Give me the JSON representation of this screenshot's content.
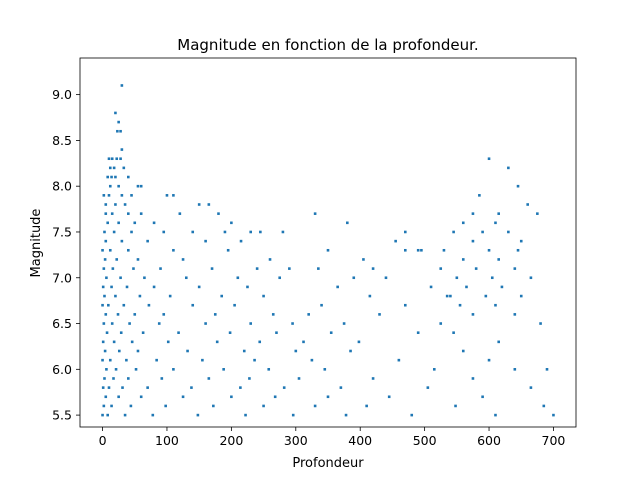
{
  "chart_data": {
    "type": "scatter",
    "title": "Magnitude en fonction de la profondeur.",
    "xlabel": "Profondeur",
    "ylabel": "Magnitude",
    "xlim": [
      -35,
      735
    ],
    "ylim": [
      5.37,
      9.4
    ],
    "xticks": [
      0,
      100,
      200,
      300,
      400,
      500,
      600,
      700
    ],
    "yticks": [
      5.5,
      6.0,
      6.5,
      7.0,
      7.5,
      8.0,
      8.5,
      9.0
    ],
    "ytick_labels": [
      "5.5",
      "6.0",
      "6.5",
      "7.0",
      "7.5",
      "8.0",
      "8.5",
      "9.0"
    ],
    "grid": false,
    "color": "#1f77b4",
    "points": [
      [
        30,
        9.1
      ],
      [
        20,
        8.8
      ],
      [
        25,
        8.7
      ],
      [
        23,
        8.6
      ],
      [
        28,
        8.6
      ],
      [
        30,
        8.4
      ],
      [
        10,
        8.3
      ],
      [
        15,
        8.3
      ],
      [
        22,
        8.3
      ],
      [
        28,
        8.3
      ],
      [
        12,
        8.2
      ],
      [
        18,
        8.2
      ],
      [
        33,
        8.2
      ],
      [
        8,
        8.1
      ],
      [
        14,
        8.1
      ],
      [
        20,
        8.1
      ],
      [
        40,
        8.1
      ],
      [
        12,
        8.0
      ],
      [
        25,
        8.0
      ],
      [
        55,
        8.0
      ],
      [
        60,
        8.0
      ],
      [
        2,
        7.9
      ],
      [
        10,
        7.9
      ],
      [
        30,
        7.9
      ],
      [
        45,
        7.9
      ],
      [
        100,
        7.9
      ],
      [
        110,
        7.9
      ],
      [
        5,
        7.8
      ],
      [
        20,
        7.8
      ],
      [
        35,
        7.8
      ],
      [
        150,
        7.8
      ],
      [
        165,
        7.8
      ],
      [
        5,
        7.7
      ],
      [
        15,
        7.7
      ],
      [
        40,
        7.7
      ],
      [
        60,
        7.7
      ],
      [
        120,
        7.7
      ],
      [
        180,
        7.7
      ],
      [
        330,
        7.7
      ],
      [
        8,
        7.6
      ],
      [
        25,
        7.6
      ],
      [
        50,
        7.6
      ],
      [
        80,
        7.6
      ],
      [
        200,
        7.6
      ],
      [
        380,
        7.6
      ],
      [
        3,
        7.5
      ],
      [
        18,
        7.5
      ],
      [
        45,
        7.5
      ],
      [
        95,
        7.5
      ],
      [
        140,
        7.5
      ],
      [
        190,
        7.5
      ],
      [
        230,
        7.5
      ],
      [
        245,
        7.5
      ],
      [
        280,
        7.5
      ],
      [
        5,
        7.4
      ],
      [
        30,
        7.4
      ],
      [
        70,
        7.4
      ],
      [
        160,
        7.4
      ],
      [
        215,
        7.4
      ],
      [
        455,
        7.4
      ],
      [
        0,
        7.3
      ],
      [
        12,
        7.3
      ],
      [
        40,
        7.3
      ],
      [
        110,
        7.3
      ],
      [
        195,
        7.3
      ],
      [
        350,
        7.3
      ],
      [
        470,
        7.3
      ],
      [
        490,
        7.3
      ],
      [
        495,
        7.3
      ],
      [
        4,
        7.2
      ],
      [
        22,
        7.2
      ],
      [
        55,
        7.2
      ],
      [
        125,
        7.2
      ],
      [
        260,
        7.2
      ],
      [
        405,
        7.2
      ],
      [
        2,
        7.1
      ],
      [
        16,
        7.1
      ],
      [
        48,
        7.1
      ],
      [
        90,
        7.1
      ],
      [
        170,
        7.1
      ],
      [
        240,
        7.1
      ],
      [
        290,
        7.1
      ],
      [
        335,
        7.1
      ],
      [
        420,
        7.1
      ],
      [
        6,
        7.0
      ],
      [
        28,
        7.0
      ],
      [
        65,
        7.0
      ],
      [
        130,
        7.0
      ],
      [
        210,
        7.0
      ],
      [
        275,
        7.0
      ],
      [
        390,
        7.0
      ],
      [
        440,
        7.0
      ],
      [
        1,
        6.9
      ],
      [
        14,
        6.9
      ],
      [
        38,
        6.9
      ],
      [
        80,
        6.9
      ],
      [
        150,
        6.9
      ],
      [
        225,
        6.9
      ],
      [
        365,
        6.9
      ],
      [
        510,
        6.9
      ],
      [
        3,
        6.8
      ],
      [
        20,
        6.8
      ],
      [
        58,
        6.8
      ],
      [
        105,
        6.8
      ],
      [
        185,
        6.8
      ],
      [
        250,
        6.8
      ],
      [
        415,
        6.8
      ],
      [
        540,
        6.8
      ],
      [
        0,
        6.7
      ],
      [
        9,
        6.7
      ],
      [
        33,
        6.7
      ],
      [
        72,
        6.7
      ],
      [
        140,
        6.7
      ],
      [
        205,
        6.7
      ],
      [
        340,
        6.7
      ],
      [
        470,
        6.7
      ],
      [
        5,
        6.6
      ],
      [
        24,
        6.6
      ],
      [
        50,
        6.6
      ],
      [
        95,
        6.6
      ],
      [
        175,
        6.6
      ],
      [
        265,
        6.6
      ],
      [
        320,
        6.6
      ],
      [
        430,
        6.6
      ],
      [
        2,
        6.5
      ],
      [
        15,
        6.5
      ],
      [
        42,
        6.5
      ],
      [
        88,
        6.5
      ],
      [
        160,
        6.5
      ],
      [
        230,
        6.5
      ],
      [
        295,
        6.5
      ],
      [
        375,
        6.5
      ],
      [
        525,
        6.5
      ],
      [
        7,
        6.4
      ],
      [
        29,
        6.4
      ],
      [
        63,
        6.4
      ],
      [
        118,
        6.4
      ],
      [
        198,
        6.4
      ],
      [
        270,
        6.4
      ],
      [
        355,
        6.4
      ],
      [
        490,
        6.4
      ],
      [
        1,
        6.3
      ],
      [
        18,
        6.3
      ],
      [
        46,
        6.3
      ],
      [
        102,
        6.3
      ],
      [
        178,
        6.3
      ],
      [
        244,
        6.3
      ],
      [
        312,
        6.3
      ],
      [
        398,
        6.3
      ],
      [
        4,
        6.2
      ],
      [
        26,
        6.2
      ],
      [
        55,
        6.2
      ],
      [
        132,
        6.2
      ],
      [
        220,
        6.2
      ],
      [
        300,
        6.2
      ],
      [
        385,
        6.2
      ],
      [
        560,
        6.2
      ],
      [
        0,
        6.1
      ],
      [
        12,
        6.1
      ],
      [
        37,
        6.1
      ],
      [
        84,
        6.1
      ],
      [
        155,
        6.1
      ],
      [
        236,
        6.1
      ],
      [
        325,
        6.1
      ],
      [
        460,
        6.1
      ],
      [
        600,
        6.1
      ],
      [
        6,
        6.0
      ],
      [
        21,
        6.0
      ],
      [
        52,
        6.0
      ],
      [
        110,
        6.0
      ],
      [
        188,
        6.0
      ],
      [
        258,
        6.0
      ],
      [
        345,
        6.0
      ],
      [
        515,
        6.0
      ],
      [
        640,
        6.0
      ],
      [
        3,
        5.9
      ],
      [
        17,
        5.9
      ],
      [
        40,
        5.9
      ],
      [
        92,
        5.9
      ],
      [
        165,
        5.9
      ],
      [
        228,
        5.9
      ],
      [
        305,
        5.9
      ],
      [
        420,
        5.9
      ],
      [
        575,
        5.9
      ],
      [
        1,
        5.8
      ],
      [
        10,
        5.8
      ],
      [
        31,
        5.8
      ],
      [
        70,
        5.8
      ],
      [
        138,
        5.8
      ],
      [
        214,
        5.8
      ],
      [
        282,
        5.8
      ],
      [
        370,
        5.8
      ],
      [
        505,
        5.8
      ],
      [
        665,
        5.8
      ],
      [
        5,
        5.7
      ],
      [
        25,
        5.7
      ],
      [
        60,
        5.7
      ],
      [
        125,
        5.7
      ],
      [
        200,
        5.7
      ],
      [
        268,
        5.7
      ],
      [
        350,
        5.7
      ],
      [
        445,
        5.7
      ],
      [
        590,
        5.7
      ],
      [
        2,
        5.6
      ],
      [
        14,
        5.6
      ],
      [
        44,
        5.6
      ],
      [
        98,
        5.6
      ],
      [
        172,
        5.6
      ],
      [
        250,
        5.6
      ],
      [
        330,
        5.6
      ],
      [
        410,
        5.6
      ],
      [
        548,
        5.6
      ],
      [
        685,
        5.6
      ],
      [
        0,
        5.5
      ],
      [
        8,
        5.5
      ],
      [
        35,
        5.5
      ],
      [
        78,
        5.5
      ],
      [
        148,
        5.5
      ],
      [
        222,
        5.5
      ],
      [
        296,
        5.5
      ],
      [
        378,
        5.5
      ],
      [
        480,
        5.5
      ],
      [
        610,
        5.5
      ],
      [
        700,
        5.5
      ],
      [
        600,
        8.3
      ],
      [
        630,
        8.2
      ],
      [
        645,
        8.0
      ],
      [
        585,
        7.9
      ],
      [
        660,
        7.8
      ],
      [
        575,
        7.7
      ],
      [
        615,
        7.7
      ],
      [
        675,
        7.7
      ],
      [
        560,
        7.6
      ],
      [
        610,
        7.6
      ],
      [
        545,
        7.5
      ],
      [
        590,
        7.5
      ],
      [
        630,
        7.5
      ],
      [
        470,
        7.5
      ],
      [
        575,
        7.4
      ],
      [
        650,
        7.4
      ],
      [
        530,
        7.3
      ],
      [
        600,
        7.3
      ],
      [
        645,
        7.3
      ],
      [
        560,
        7.2
      ],
      [
        615,
        7.2
      ],
      [
        525,
        7.1
      ],
      [
        580,
        7.1
      ],
      [
        640,
        7.1
      ],
      [
        550,
        7.0
      ],
      [
        605,
        7.0
      ],
      [
        665,
        7.0
      ],
      [
        565,
        6.9
      ],
      [
        620,
        6.9
      ],
      [
        535,
        6.8
      ],
      [
        595,
        6.8
      ],
      [
        650,
        6.8
      ],
      [
        555,
        6.7
      ],
      [
        610,
        6.7
      ],
      [
        575,
        6.6
      ],
      [
        640,
        6.6
      ],
      [
        680,
        6.5
      ],
      [
        545,
        6.4
      ],
      [
        615,
        6.3
      ],
      [
        690,
        6.0
      ]
    ]
  }
}
